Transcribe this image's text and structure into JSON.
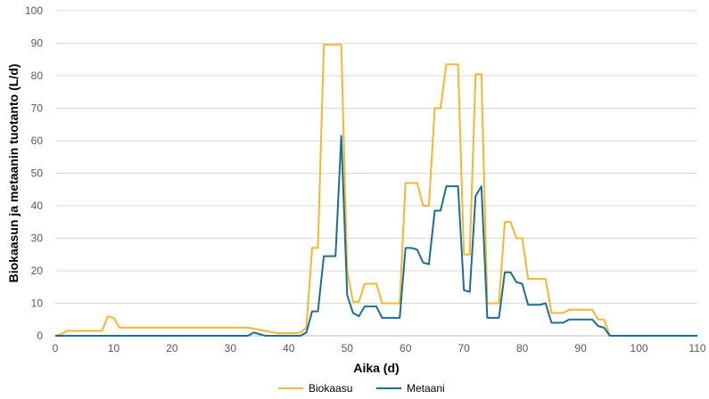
{
  "chart_data": {
    "type": "line",
    "title": "",
    "xlabel": "Aika (d)",
    "ylabel": "Biokaasun ja metaanin tuotanto (L/d)",
    "xlim": [
      0,
      110
    ],
    "ylim": [
      0,
      100
    ],
    "xticks": [
      0,
      10,
      20,
      30,
      40,
      50,
      60,
      70,
      80,
      90,
      100,
      110
    ],
    "yticks": [
      0,
      10,
      20,
      30,
      40,
      50,
      60,
      70,
      80,
      90,
      100
    ],
    "grid": true,
    "legend_position": "bottom",
    "series": [
      {
        "name": "Biokaasu",
        "color": "#F5B631",
        "points": [
          [
            0,
            0
          ],
          [
            1,
            0.5
          ],
          [
            2,
            1.5
          ],
          [
            8,
            1.5
          ],
          [
            9,
            6
          ],
          [
            10,
            5.5
          ],
          [
            11,
            2.5
          ],
          [
            33,
            2.5
          ],
          [
            34,
            2.2
          ],
          [
            36,
            1.5
          ],
          [
            38,
            0.8
          ],
          [
            41,
            0.8
          ],
          [
            42,
            1
          ],
          [
            43,
            2.5
          ],
          [
            44,
            27
          ],
          [
            45,
            27
          ],
          [
            46,
            89.5
          ],
          [
            49,
            89.5
          ],
          [
            50,
            20
          ],
          [
            51,
            10.5
          ],
          [
            52,
            10.5
          ],
          [
            53,
            16
          ],
          [
            55,
            16
          ],
          [
            56,
            10
          ],
          [
            59,
            10
          ],
          [
            60,
            47
          ],
          [
            62,
            47
          ],
          [
            63,
            40
          ],
          [
            64,
            40
          ],
          [
            65,
            70
          ],
          [
            66,
            70
          ],
          [
            67,
            83.5
          ],
          [
            69,
            83.5
          ],
          [
            70,
            25
          ],
          [
            71,
            25
          ],
          [
            72,
            80.5
          ],
          [
            73,
            80.5
          ],
          [
            74,
            10
          ],
          [
            76,
            10
          ],
          [
            77,
            35
          ],
          [
            78,
            35
          ],
          [
            79,
            30
          ],
          [
            80,
            30
          ],
          [
            81,
            17.5
          ],
          [
            84,
            17.5
          ],
          [
            85,
            7
          ],
          [
            87,
            7
          ],
          [
            88,
            8
          ],
          [
            92,
            8
          ],
          [
            93,
            5
          ],
          [
            94,
            5
          ],
          [
            95,
            0
          ],
          [
            110,
            0
          ]
        ]
      },
      {
        "name": "Metaani",
        "color": "#1C6E95",
        "points": [
          [
            0,
            0
          ],
          [
            33,
            0
          ],
          [
            34,
            1
          ],
          [
            35,
            0.5
          ],
          [
            36,
            0
          ],
          [
            42,
            0
          ],
          [
            43,
            1
          ],
          [
            44,
            7.5
          ],
          [
            45,
            7.5
          ],
          [
            46,
            24.5
          ],
          [
            48,
            24.5
          ],
          [
            49,
            61.5
          ],
          [
            50,
            12.5
          ],
          [
            51,
            7
          ],
          [
            52,
            6
          ],
          [
            53,
            9
          ],
          [
            55,
            9
          ],
          [
            56,
            5.5
          ],
          [
            59,
            5.5
          ],
          [
            60,
            27
          ],
          [
            61,
            27
          ],
          [
            62,
            26.5
          ],
          [
            63,
            22.5
          ],
          [
            64,
            22
          ],
          [
            65,
            38.5
          ],
          [
            66,
            38.5
          ],
          [
            67,
            46
          ],
          [
            69,
            46
          ],
          [
            70,
            14
          ],
          [
            71,
            13.5
          ],
          [
            72,
            43
          ],
          [
            73,
            46
          ],
          [
            74,
            5.5
          ],
          [
            76,
            5.5
          ],
          [
            77,
            19.5
          ],
          [
            78,
            19.5
          ],
          [
            79,
            16.5
          ],
          [
            80,
            16
          ],
          [
            81,
            9.5
          ],
          [
            83,
            9.5
          ],
          [
            84,
            10
          ],
          [
            85,
            4
          ],
          [
            87,
            4
          ],
          [
            88,
            5
          ],
          [
            92,
            5
          ],
          [
            93,
            3
          ],
          [
            94,
            2.5
          ],
          [
            95,
            0
          ],
          [
            110,
            0
          ]
        ]
      }
    ]
  }
}
